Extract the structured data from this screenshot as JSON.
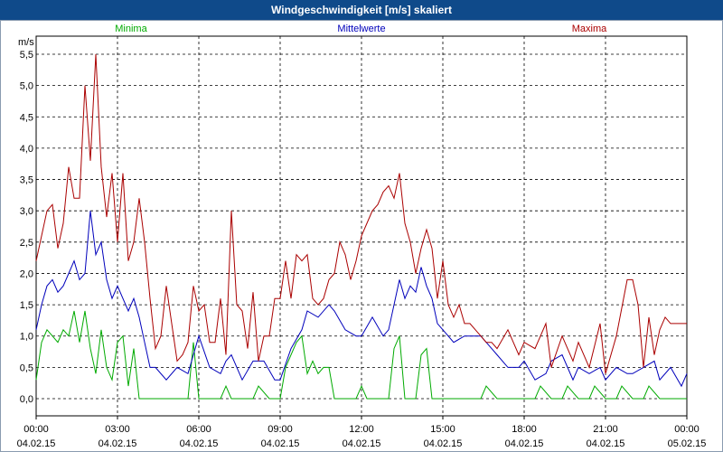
{
  "title": "Windgeschwindigkeit [m/s] skaliert",
  "chart_data": {
    "type": "line",
    "title": "Windgeschwindigkeit [m/s] skaliert",
    "ylabel": "m/s",
    "ylim": [
      0,
      5.5
    ],
    "yticks": [
      "0,0",
      "0,5",
      "1,0",
      "1,5",
      "2,0",
      "2,5",
      "3,0",
      "3,5",
      "4,0",
      "4,5",
      "5,0",
      "5,5"
    ],
    "xlim_hours": [
      0,
      24
    ],
    "xticks": [
      {
        "time": "00:00",
        "date": "04.02.15"
      },
      {
        "time": "03:00",
        "date": "04.02.15"
      },
      {
        "time": "06:00",
        "date": "04.02.15"
      },
      {
        "time": "09:00",
        "date": "04.02.15"
      },
      {
        "time": "12:00",
        "date": "04.02.15"
      },
      {
        "time": "15:00",
        "date": "04.02.15"
      },
      {
        "time": "18:00",
        "date": "04.02.15"
      },
      {
        "time": "21:00",
        "date": "04.02.15"
      },
      {
        "time": "00:00",
        "date": "05.02.15"
      }
    ],
    "series": [
      {
        "name": "Minima",
        "color": "#00aa00",
        "x": [
          0,
          0.2,
          0.4,
          0.6,
          0.8,
          1,
          1.2,
          1.4,
          1.6,
          1.8,
          2,
          2.2,
          2.4,
          2.6,
          2.8,
          3,
          3.2,
          3.4,
          3.6,
          3.8,
          4,
          4.2,
          4.4,
          5,
          5.6,
          5.8,
          6,
          6.4,
          6.8,
          7,
          7.2,
          7.6,
          8,
          8.2,
          8.6,
          9,
          9.2,
          9.6,
          9.8,
          10,
          10.2,
          10.4,
          10.6,
          10.8,
          11,
          11.4,
          11.8,
          12,
          12.2,
          13,
          13.2,
          13.4,
          13.6,
          14,
          14.2,
          14.4,
          14.6,
          15,
          15.4,
          15.6,
          16,
          16.4,
          16.6,
          17,
          17.4,
          18,
          18.4,
          18.6,
          19,
          19.4,
          19.6,
          20,
          20.4,
          20.6,
          21,
          21.4,
          21.6,
          22,
          22.4,
          22.6,
          23,
          23.4,
          23.6,
          24
        ],
        "values": [
          0.3,
          0.9,
          1.1,
          1.0,
          0.9,
          1.1,
          1.0,
          1.4,
          0.9,
          1.4,
          0.8,
          0.4,
          1.1,
          0.5,
          0.3,
          0.9,
          1.0,
          0.2,
          0.8,
          0,
          0,
          0,
          0,
          0,
          0,
          0.9,
          0,
          0,
          0,
          0.2,
          0,
          0,
          0,
          0.2,
          0,
          0,
          0.5,
          0.9,
          1.0,
          0.4,
          0.6,
          0.4,
          0.5,
          0.5,
          0,
          0,
          0,
          0.2,
          0,
          0,
          0.8,
          1.0,
          0,
          0,
          0.7,
          0.8,
          0,
          0,
          0,
          0,
          0,
          0,
          0.2,
          0,
          0,
          0,
          0,
          0.2,
          0,
          0,
          0.2,
          0,
          0,
          0.2,
          0,
          0,
          0.2,
          0,
          0,
          0.2,
          0,
          0,
          0,
          0
        ]
      },
      {
        "name": "Mittelwerte",
        "color": "#0000bb",
        "x": [
          0,
          0.2,
          0.4,
          0.6,
          0.8,
          1,
          1.2,
          1.4,
          1.6,
          1.8,
          2,
          2.2,
          2.4,
          2.6,
          2.8,
          3,
          3.2,
          3.4,
          3.6,
          3.8,
          4,
          4.2,
          4.4,
          4.8,
          5.2,
          5.6,
          6,
          6.4,
          6.8,
          7,
          7.2,
          7.6,
          8,
          8.4,
          8.8,
          9,
          9.4,
          9.8,
          10,
          10.4,
          10.8,
          11,
          11.4,
          11.8,
          12,
          12.4,
          12.8,
          13,
          13.4,
          13.6,
          13.8,
          14,
          14.2,
          14.4,
          14.6,
          14.8,
          15,
          15.4,
          15.8,
          16,
          16.4,
          16.8,
          17,
          17.4,
          17.8,
          18,
          18.4,
          18.8,
          19,
          19.4,
          19.8,
          20,
          20.4,
          20.8,
          21,
          21.4,
          21.8,
          22,
          22.4,
          22.8,
          23,
          23.4,
          23.8,
          24
        ],
        "values": [
          1.1,
          1.5,
          1.8,
          1.9,
          1.7,
          1.8,
          2.0,
          2.2,
          1.9,
          2.0,
          3.0,
          2.3,
          2.5,
          1.9,
          1.6,
          1.8,
          1.6,
          1.4,
          1.6,
          1.3,
          0.9,
          0.5,
          0.5,
          0.3,
          0.5,
          0.4,
          1.0,
          0.5,
          0.4,
          0.6,
          0.7,
          0.3,
          0.6,
          0.6,
          0.3,
          0.3,
          0.8,
          1.1,
          1.4,
          1.3,
          1.5,
          1.4,
          1.1,
          1.0,
          1.0,
          1.3,
          1.0,
          1.1,
          1.9,
          1.6,
          1.8,
          1.7,
          2.1,
          1.8,
          1.6,
          1.2,
          1.1,
          0.9,
          1.0,
          1.0,
          1.0,
          0.8,
          0.7,
          0.5,
          0.5,
          0.6,
          0.3,
          0.4,
          0.6,
          0.7,
          0.3,
          0.5,
          0.4,
          0.5,
          0.3,
          0.5,
          0.4,
          0.4,
          0.5,
          0.6,
          0.3,
          0.5,
          0.2,
          0.4
        ]
      },
      {
        "name": "Maxima",
        "color": "#aa0000",
        "x": [
          0,
          0.2,
          0.4,
          0.6,
          0.8,
          1,
          1.2,
          1.4,
          1.6,
          1.8,
          2,
          2.2,
          2.4,
          2.6,
          2.8,
          3,
          3.2,
          3.4,
          3.6,
          3.8,
          4,
          4.2,
          4.4,
          4.6,
          4.8,
          5,
          5.2,
          5.4,
          5.6,
          5.8,
          6,
          6.2,
          6.4,
          6.6,
          6.8,
          7,
          7.2,
          7.4,
          7.6,
          7.8,
          8,
          8.2,
          8.4,
          8.6,
          8.8,
          9,
          9.2,
          9.4,
          9.6,
          9.8,
          10,
          10.2,
          10.4,
          10.6,
          10.8,
          11,
          11.2,
          11.4,
          11.6,
          11.8,
          12,
          12.2,
          12.4,
          12.6,
          12.8,
          13,
          13.2,
          13.4,
          13.6,
          13.8,
          14,
          14.2,
          14.4,
          14.6,
          14.8,
          15,
          15.2,
          15.4,
          15.6,
          15.8,
          16,
          16.2,
          16.4,
          16.6,
          16.8,
          17,
          17.4,
          17.8,
          18,
          18.4,
          18.8,
          19,
          19.4,
          19.8,
          20,
          20.4,
          20.8,
          21,
          21.4,
          21.8,
          22,
          22.2,
          22.4,
          22.6,
          22.8,
          23,
          23.2,
          23.4,
          23.6,
          23.8,
          24
        ],
        "values": [
          2.2,
          2.6,
          3.0,
          3.1,
          2.4,
          2.8,
          3.7,
          3.2,
          3.2,
          5.0,
          3.8,
          5.5,
          3.7,
          2.9,
          3.6,
          2.5,
          3.6,
          2.2,
          2.5,
          3.2,
          2.5,
          1.6,
          0.8,
          1.0,
          1.8,
          1.2,
          0.6,
          0.7,
          0.9,
          1.8,
          1.4,
          1.5,
          0.9,
          0.9,
          1.6,
          0.7,
          3.0,
          1.5,
          1.4,
          0.8,
          1.7,
          0.6,
          1.0,
          1.0,
          1.6,
          1.6,
          2.2,
          1.6,
          2.3,
          2.2,
          2.3,
          1.6,
          1.5,
          1.6,
          1.9,
          2.0,
          2.5,
          2.3,
          1.9,
          2.2,
          2.6,
          2.8,
          3.0,
          3.1,
          3.3,
          3.4,
          3.2,
          3.6,
          2.8,
          2.5,
          2.0,
          2.4,
          2.7,
          2.4,
          1.6,
          2.2,
          1.5,
          1.3,
          1.5,
          1.2,
          1.2,
          1.1,
          1.0,
          0.9,
          0.9,
          0.8,
          1.1,
          0.7,
          0.9,
          0.8,
          1.2,
          0.5,
          1.0,
          0.6,
          0.9,
          0.5,
          1.2,
          0.4,
          1.0,
          1.9,
          1.9,
          1.5,
          0.5,
          1.3,
          0.7,
          1.1,
          1.3,
          1.2,
          1.2,
          1.2,
          1.2
        ]
      }
    ]
  }
}
